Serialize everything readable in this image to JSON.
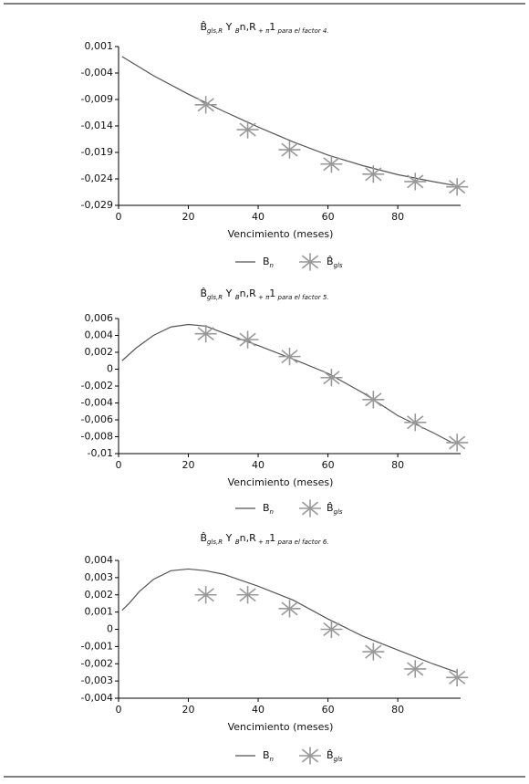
{
  "chart_data": [
    {
      "type": "line",
      "title": [
        "B̂",
        "gls,R",
        " Y ",
        "B",
        "n,R",
        " + π",
        "1",
        " para el factor 4."
      ],
      "x_label": "Vencimiento (meses)",
      "xlim": [
        0,
        98
      ],
      "xticks": [
        0,
        20,
        40,
        60,
        80
      ],
      "ylim": [
        -0.029,
        0.001
      ],
      "yticks": [
        {
          "value": 0.001,
          "label": "0,001"
        },
        {
          "value": -0.004,
          "label": "-0,004"
        },
        {
          "value": -0.009,
          "label": "-0,009"
        },
        {
          "value": -0.014,
          "label": "-0,014"
        },
        {
          "value": -0.019,
          "label": "-0,019"
        },
        {
          "value": -0.024,
          "label": "-0,024"
        },
        {
          "value": -0.029,
          "label": "-0,029"
        }
      ],
      "series": [
        {
          "name": [
            "B",
            "n"
          ],
          "type": "line",
          "color": "#555555",
          "x": [
            1,
            10,
            20,
            30,
            40,
            50,
            60,
            70,
            80,
            90,
            96
          ],
          "values": [
            -0.0009,
            -0.0045,
            -0.008,
            -0.0112,
            -0.0142,
            -0.017,
            -0.0195,
            -0.0215,
            -0.0232,
            -0.0245,
            -0.0252
          ]
        },
        {
          "name": [
            "B̂",
            "gls"
          ],
          "type": "scatter",
          "color": "#999999",
          "x": [
            25,
            37,
            49,
            61,
            73,
            85,
            97
          ],
          "values": [
            -0.01,
            -0.0147,
            -0.0185,
            -0.0212,
            -0.0231,
            -0.0245,
            -0.0255
          ]
        }
      ]
    },
    {
      "type": "line",
      "title": [
        "B̂",
        "gls,R",
        " Y ",
        "B",
        "n,R",
        " + π",
        "1",
        " para el factor 5."
      ],
      "x_label": "Vencimiento (meses)",
      "xlim": [
        0,
        98
      ],
      "xticks": [
        0,
        20,
        40,
        60,
        80
      ],
      "ylim": [
        -0.01,
        0.006
      ],
      "yticks": [
        {
          "value": 0.006,
          "label": "0,006"
        },
        {
          "value": 0.004,
          "label": "0,004"
        },
        {
          "value": 0.002,
          "label": "0,002"
        },
        0,
        {
          "value": -0.002,
          "label": "-0,002"
        },
        {
          "value": -0.004,
          "label": "-0,004"
        },
        {
          "value": -0.006,
          "label": "-0,006"
        },
        {
          "value": -0.008,
          "label": "-0,008"
        },
        {
          "value": -0.01,
          "label": "-0,01"
        }
      ],
      "series": [
        {
          "name": [
            "B",
            "n"
          ],
          "type": "line",
          "color": "#555555",
          "x": [
            1,
            5,
            10,
            15,
            20,
            25,
            30,
            40,
            50,
            60,
            70,
            80,
            90,
            96
          ],
          "values": [
            0.001,
            0.0025,
            0.004,
            0.005,
            0.0053,
            0.0051,
            0.0043,
            0.0028,
            0.0012,
            -0.0005,
            -0.0028,
            -0.0055,
            -0.0075,
            -0.0088
          ]
        },
        {
          "name": [
            "B̂",
            "gls"
          ],
          "type": "scatter",
          "color": "#999999",
          "x": [
            25,
            37,
            49,
            61,
            73,
            85,
            97
          ],
          "values": [
            0.0042,
            0.0035,
            0.0015,
            -0.001,
            -0.0036,
            -0.0063,
            -0.0087
          ]
        }
      ]
    },
    {
      "type": "line",
      "title": [
        "B̂",
        "gls,R",
        " Y ",
        "B",
        "n,R",
        " + π",
        "1",
        " para el factor 6."
      ],
      "x_label": "Vencimiento (meses)",
      "xlim": [
        0,
        98
      ],
      "xticks": [
        0,
        20,
        40,
        60,
        80
      ],
      "ylim": [
        -0.004,
        0.004
      ],
      "yticks": [
        {
          "value": 0.004,
          "label": "0,004"
        },
        {
          "value": 0.003,
          "label": "0,003"
        },
        {
          "value": 0.002,
          "label": "0,002"
        },
        {
          "value": 0.001,
          "label": "0,001"
        },
        0,
        {
          "value": -0.001,
          "label": "-0,001"
        },
        {
          "value": -0.002,
          "label": "-0,002"
        },
        {
          "value": -0.003,
          "label": "-0,003"
        },
        {
          "value": -0.004,
          "label": "-0,004"
        }
      ],
      "series": [
        {
          "name": [
            "B",
            "n"
          ],
          "type": "line",
          "color": "#555555",
          "x": [
            1,
            3,
            6,
            10,
            15,
            20,
            25,
            30,
            40,
            50,
            60,
            70,
            80,
            90,
            97
          ],
          "values": [
            0.0011,
            0.0015,
            0.0022,
            0.0029,
            0.0034,
            0.0035,
            0.0034,
            0.0032,
            0.0025,
            0.0017,
            0.0006,
            -0.0004,
            -0.0012,
            -0.002,
            -0.0025
          ]
        },
        {
          "name": [
            "B̂",
            "gls"
          ],
          "type": "scatter",
          "color": "#999999",
          "x": [
            25,
            37,
            49,
            61,
            73,
            85,
            97
          ],
          "values": [
            0.002,
            0.002,
            0.0012,
            0,
            -0.0013,
            -0.0023,
            -0.0028
          ]
        }
      ]
    }
  ]
}
